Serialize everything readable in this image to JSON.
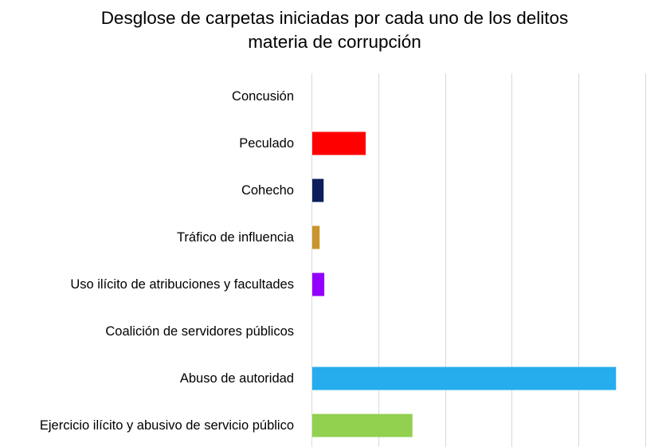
{
  "chart_data": {
    "type": "bar",
    "orientation": "horizontal",
    "title_lines": [
      "Desglose de carpetas iniciadas por cada uno de los delitos",
      "materia de corrupción"
    ],
    "categories": [
      "Concusión",
      "Peculado",
      "Cohecho",
      "Tráfico de influencia",
      "Uso ilícito de atribuciones y facultades",
      "Coalición de servidores públicos",
      "Abuso de autoridad",
      "Ejercicio ilícito y abusivo de servicio público"
    ],
    "values": [
      0,
      8,
      1.7,
      1.1,
      1.8,
      0,
      45.5,
      15
    ],
    "colors": [
      "#ff0000",
      "#ff0000",
      "#0c1f5c",
      "#c9952c",
      "#9300ff",
      "#9300ff",
      "#25adee",
      "#92d050"
    ],
    "xlim": [
      0,
      50
    ],
    "grid_step": 10,
    "grid": true,
    "legend": false,
    "xlabel": "",
    "ylabel": ""
  }
}
